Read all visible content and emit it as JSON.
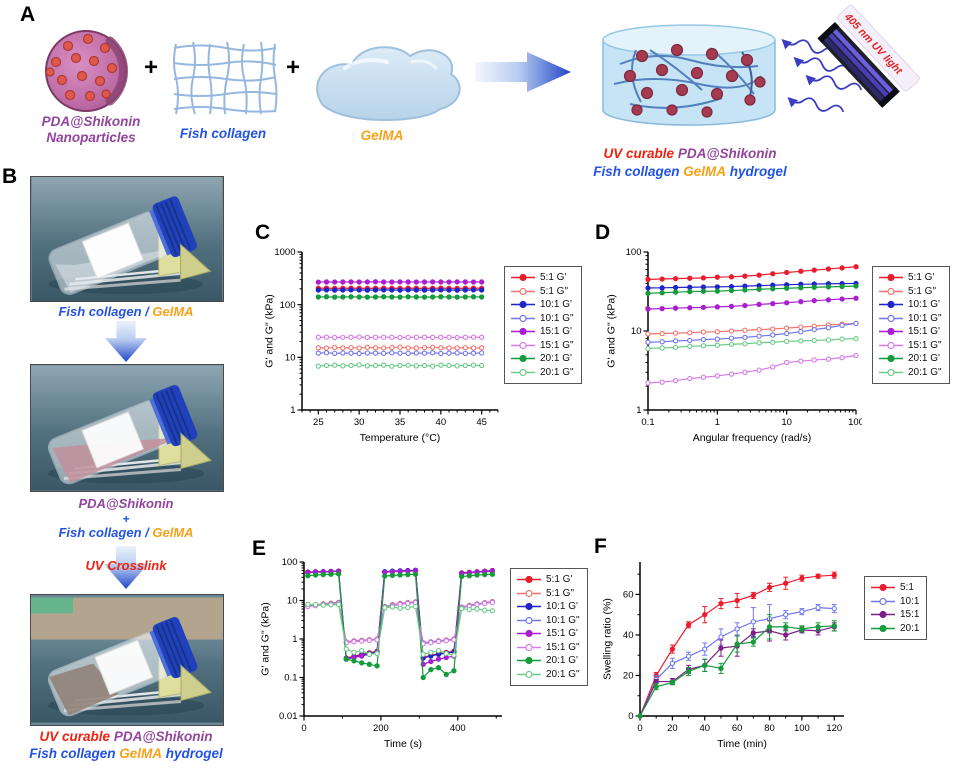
{
  "panels": {
    "a": "A",
    "b": "B",
    "c": "C",
    "d": "D",
    "e": "E",
    "f": "F"
  },
  "colors": {
    "label_purple": "#93449c",
    "label_blue": "#2353e3",
    "label_orange": "#f7a11a",
    "label_red": "#ee2211",
    "s5_g1": "#ec1c2d",
    "s5_g2": "#f2756d",
    "s10_g1": "#2125c8",
    "s10_g2": "#7178ee",
    "s15_g1": "#a91fd0",
    "s15_g2": "#d77ae8",
    "s20_g1": "#149b3b",
    "s20_g2": "#6bcb87",
    "f_15": "#7b2185"
  },
  "panel_a": {
    "nanoparticle_label_1": "PDA@Shikonin",
    "nanoparticle_label_2": "Nanoparticles",
    "plus": "+",
    "collagen_label": "Fish collagen",
    "gelma_label": "GelMA",
    "uv_lamp_label": "405 nm UV light",
    "caption": {
      "uv_curable": "UV curable",
      "pda": "PDA@Shikonin",
      "fish": "Fish collagen",
      "gelma": "GelMA",
      "hydrogel": "hydrogel"
    }
  },
  "panel_b": {
    "step1": {
      "fish": "Fish collagen",
      "sep": " / ",
      "gelma": "GelMA"
    },
    "step2": {
      "pda": "PDA@Shikonin",
      "plus": "+",
      "fish": "Fish collagen",
      "sep": " / ",
      "gelma": "GelMA"
    },
    "uv_crosslink": "UV Crosslink",
    "final": {
      "uv_curable": "UV curable",
      "pda": "PDA@Shikonin",
      "fish": "Fish collagen",
      "gelma": "GelMA",
      "hydrogel": "hydrogel"
    }
  },
  "chart_data": [
    {
      "panel": "c",
      "type": "line",
      "title": "",
      "xlabel": "Temperature (°C)",
      "ylabel": "G' and G\" (kPa)",
      "xscale": "linear",
      "xlim": [
        23,
        47
      ],
      "xticks": [
        25,
        30,
        35,
        40,
        45
      ],
      "xminor_step": 1,
      "yscale": "log",
      "ylim": [
        1,
        1000
      ],
      "yticks": [
        1,
        10,
        100,
        1000
      ],
      "x": [
        25,
        26,
        27,
        28,
        29,
        30,
        31,
        32,
        33,
        34,
        35,
        36,
        37,
        38,
        39,
        40,
        41,
        42,
        43,
        44,
        45
      ],
      "series": [
        {
          "name": "5:1 G'",
          "color": "#ec1c2d",
          "open": false,
          "y": [
            205,
            206,
            204,
            205,
            206,
            205,
            204,
            205,
            206,
            205,
            204,
            206,
            205,
            204,
            205,
            206,
            205,
            204,
            205,
            206,
            205
          ]
        },
        {
          "name": "5:1 G\"",
          "color": "#f2756d",
          "open": true,
          "y": [
            15.2,
            15.0,
            15.4,
            15.1,
            15.3,
            15.0,
            15.5,
            15.2,
            15.0,
            15.4,
            15.6,
            15.1,
            15.0,
            15.3,
            15.5,
            15.2,
            15.0,
            15.1,
            15.3,
            15.0,
            15.2
          ]
        },
        {
          "name": "10:1 G'",
          "color": "#2125c8",
          "open": false,
          "y": [
            190,
            191,
            189,
            190,
            191,
            190,
            189,
            190,
            191,
            190,
            189,
            191,
            190,
            189,
            190,
            191,
            190,
            189,
            190,
            191,
            190
          ]
        },
        {
          "name": "10:1 G\"",
          "color": "#7178ee",
          "open": true,
          "y": [
            12.0,
            12.2,
            11.9,
            12.1,
            12.0,
            11.8,
            12.1,
            12.0,
            11.9,
            12.2,
            12.0,
            11.9,
            12.1,
            12.0,
            12.2,
            11.8,
            12.0,
            12.1,
            11.9,
            12.0,
            12.1
          ]
        },
        {
          "name": "15:1 G'",
          "color": "#a91fd0",
          "open": false,
          "y": [
            268,
            270,
            269,
            270,
            271,
            269,
            270,
            272,
            270,
            269,
            271,
            270,
            269,
            270,
            271,
            270,
            269,
            271,
            270,
            269,
            270
          ]
        },
        {
          "name": "15:1 G\"",
          "color": "#d77ae8",
          "open": true,
          "y": [
            24,
            24.2,
            23.8,
            24.1,
            24,
            24.3,
            23.9,
            24,
            24.2,
            24,
            23.8,
            24.1,
            24,
            24.2,
            23.9,
            24,
            24.1,
            23.8,
            24,
            24.2,
            24
          ]
        },
        {
          "name": "20:1 G'",
          "color": "#149b3b",
          "open": false,
          "y": [
            140,
            141,
            139,
            140,
            141,
            140,
            139,
            140,
            141,
            140,
            139,
            141,
            140,
            139,
            140,
            141,
            140,
            139,
            140,
            141,
            140
          ]
        },
        {
          "name": "20:1 G\"",
          "color": "#6bcb87",
          "open": true,
          "y": [
            6.8,
            7,
            7.1,
            6.9,
            7,
            7.2,
            6.9,
            7,
            7.1,
            6.8,
            7,
            7.1,
            6.9,
            7,
            6.8,
            7.1,
            7,
            6.9,
            7,
            7.1,
            7
          ]
        }
      ]
    },
    {
      "panel": "d",
      "type": "line",
      "title": "",
      "xlabel": "Angular frequency (rad/s)",
      "ylabel": "G' and G\" (kPa)",
      "xscale": "log",
      "xlim": [
        0.1,
        100
      ],
      "xticks": [
        0.1,
        1,
        10,
        100
      ],
      "yscale": "log",
      "ylim": [
        1,
        100
      ],
      "yticks": [
        1,
        10,
        100
      ],
      "x": [
        0.1,
        0.16,
        0.25,
        0.4,
        0.63,
        1,
        1.6,
        2.5,
        4,
        6.3,
        10,
        16,
        25,
        40,
        63,
        100
      ],
      "series": [
        {
          "name": "5:1 G'",
          "color": "#ec1c2d",
          "open": false,
          "y": [
            45,
            45.5,
            46,
            46.5,
            47,
            48,
            48.5,
            49.5,
            51,
            53,
            55,
            57,
            59,
            61,
            63,
            65
          ]
        },
        {
          "name": "5:1 G\"",
          "color": "#f2756d",
          "open": true,
          "y": [
            9.2,
            9.3,
            9.4,
            9.5,
            9.7,
            9.8,
            10,
            10.2,
            10.4,
            10.6,
            10.9,
            11.2,
            11.5,
            11.9,
            12.2,
            12.5
          ]
        },
        {
          "name": "10:1 G'",
          "color": "#2125c8",
          "open": false,
          "y": [
            35,
            35.2,
            35.5,
            35.8,
            36,
            36.2,
            36.5,
            37,
            37.5,
            38,
            38.5,
            39,
            39.3,
            39.6,
            39.8,
            40
          ]
        },
        {
          "name": "10:1 G\"",
          "color": "#7178ee",
          "open": true,
          "y": [
            7.2,
            7.3,
            7.5,
            7.6,
            7.8,
            7.9,
            8.1,
            8.3,
            8.6,
            8.9,
            9.3,
            9.8,
            10.4,
            11,
            11.8,
            12.5
          ]
        },
        {
          "name": "15:1 G'",
          "color": "#a91fd0",
          "open": false,
          "y": [
            19,
            19.2,
            19.5,
            19.7,
            19.9,
            20.2,
            20.5,
            21,
            21.7,
            22.2,
            22.8,
            23.5,
            24.2,
            24.8,
            25.4,
            26
          ]
        },
        {
          "name": "15:1 G\"",
          "color": "#d77ae8",
          "open": true,
          "y": [
            2.2,
            2.25,
            2.35,
            2.5,
            2.6,
            2.7,
            2.85,
            3,
            3.2,
            3.5,
            4,
            4.15,
            4.3,
            4.4,
            4.6,
            4.9
          ]
        },
        {
          "name": "20:1 G'",
          "color": "#149b3b",
          "open": false,
          "y": [
            30,
            30.5,
            31,
            31.5,
            31.8,
            32,
            32.5,
            33,
            33.8,
            34.2,
            34.8,
            35.3,
            35.8,
            36.2,
            36.6,
            37
          ]
        },
        {
          "name": "20:1 G\"",
          "color": "#6bcb87",
          "open": true,
          "y": [
            6,
            6.1,
            6.2,
            6.4,
            6.5,
            6.6,
            6.8,
            6.9,
            7.1,
            7.2,
            7.4,
            7.5,
            7.6,
            7.7,
            7.9,
            8
          ]
        }
      ]
    },
    {
      "panel": "e",
      "type": "line",
      "title": "",
      "xlabel": "Time (s)",
      "ylabel": "G' and G\" (kPa)",
      "xscale": "linear",
      "xlim": [
        0,
        515
      ],
      "xticks": [
        0,
        200,
        400
      ],
      "xminor_step": 100,
      "yscale": "log",
      "ylim": [
        0.01,
        100
      ],
      "yticks": [
        0.01,
        0.1,
        1,
        10,
        100
      ],
      "x": [
        10,
        30,
        50,
        70,
        90,
        110,
        130,
        150,
        170,
        190,
        210,
        230,
        250,
        270,
        290,
        310,
        330,
        350,
        370,
        390,
        410,
        430,
        450,
        470,
        490
      ],
      "series": [
        {
          "name": "5:1 G'",
          "color": "#ec1c2d",
          "open": false,
          "y": [
            55,
            56,
            56,
            57,
            58,
            0.32,
            0.36,
            0.4,
            0.44,
            0.48,
            55,
            57,
            58,
            59,
            60,
            0.33,
            0.38,
            0.42,
            0.45,
            0.48,
            52,
            54,
            56,
            58,
            60
          ]
        },
        {
          "name": "5:1 G\"",
          "color": "#f2756d",
          "open": true,
          "y": [
            7.5,
            7.8,
            8.2,
            8.6,
            9.0,
            0.85,
            0.9,
            0.93,
            0.96,
            1.0,
            7.0,
            7.8,
            8.4,
            8.9,
            9.3,
            0.8,
            0.85,
            0.9,
            0.95,
            1.0,
            6.8,
            7.5,
            8.2,
            8.8,
            9.4
          ]
        },
        {
          "name": "10:1 G'",
          "color": "#2125c8",
          "open": false,
          "y": [
            54,
            55,
            56,
            57,
            58,
            0.31,
            0.34,
            0.38,
            0.42,
            0.46,
            56,
            58,
            59,
            60,
            61,
            0.32,
            0.36,
            0.4,
            0.43,
            0.46,
            51,
            53,
            55,
            57,
            59
          ]
        },
        {
          "name": "10:1 G\"",
          "color": "#7178ee",
          "open": true,
          "y": [
            7.2,
            7.5,
            7.9,
            8.3,
            8.7,
            0.82,
            0.87,
            0.9,
            0.94,
            0.97,
            6.8,
            7.5,
            8.1,
            8.6,
            9.0,
            0.78,
            0.83,
            0.88,
            0.92,
            0.97,
            6.6,
            7.3,
            8.0,
            8.6,
            9.1
          ]
        },
        {
          "name": "15:1 G'",
          "color": "#a91fd0",
          "open": false,
          "y": [
            53,
            54,
            55,
            56,
            57,
            0.3,
            0.33,
            0.36,
            0.4,
            0.44,
            54,
            56,
            57,
            58,
            59,
            0.22,
            0.26,
            0.3,
            0.33,
            0.36,
            50,
            52,
            54,
            56,
            58
          ]
        },
        {
          "name": "15:1 G\"",
          "color": "#d77ae8",
          "open": true,
          "y": [
            7.0,
            7.3,
            7.7,
            8.1,
            8.5,
            0.8,
            0.85,
            0.88,
            0.92,
            0.95,
            6.6,
            7.3,
            7.9,
            8.4,
            8.8,
            0.75,
            0.8,
            0.86,
            0.9,
            0.95,
            6.4,
            7.1,
            7.8,
            8.4,
            8.9
          ]
        },
        {
          "name": "20:1 G'",
          "color": "#149b3b",
          "open": false,
          "y": [
            44,
            46,
            47,
            48,
            49,
            0.3,
            0.27,
            0.24,
            0.22,
            0.2,
            43,
            45,
            46,
            47,
            48,
            0.1,
            0.16,
            0.18,
            0.12,
            0.15,
            42,
            44,
            46,
            47,
            48
          ]
        },
        {
          "name": "20:1 G\"",
          "color": "#6bcb87",
          "open": true,
          "y": [
            8.0,
            7.8,
            7.6,
            7.7,
            7.9,
            0.55,
            0.45,
            0.5,
            0.4,
            0.42,
            6.5,
            6.8,
            6.3,
            6.6,
            7.0,
            0.4,
            0.45,
            0.5,
            0.42,
            0.38,
            6.2,
            5.8,
            6.0,
            5.6,
            5.4
          ]
        }
      ]
    },
    {
      "panel": "f",
      "type": "line",
      "title": "",
      "xlabel": "Time (min)",
      "ylabel": "Swelling ratio (%)",
      "xscale": "linear",
      "xlim": [
        0,
        126
      ],
      "xticks": [
        0,
        20,
        40,
        60,
        80,
        100,
        120
      ],
      "xminor_step": 10,
      "yscale": "linear",
      "ylim": [
        0,
        76
      ],
      "yticks": [
        0,
        20,
        40,
        60
      ],
      "yminor_step": 10,
      "x": [
        0,
        10,
        20,
        30,
        40,
        50,
        60,
        70,
        80,
        90,
        100,
        110,
        120
      ],
      "series": [
        {
          "name": "5:1",
          "color": "#ec1c2d",
          "open": false,
          "y": [
            0,
            20,
            33,
            45,
            50,
            55.5,
            57,
            59.5,
            63.5,
            65.5,
            68,
            69,
            69.5
          ],
          "err": [
            0,
            1.5,
            2,
            1.5,
            4,
            2.5,
            3.5,
            1.5,
            2,
            3,
            1.5,
            1,
            1.5
          ]
        },
        {
          "name": "10:1",
          "color": "#7178ee",
          "open": true,
          "y": [
            0,
            18,
            26,
            29.5,
            33,
            39,
            43,
            46.5,
            48,
            50,
            51.5,
            53.5,
            53
          ],
          "err": [
            0,
            2,
            2.5,
            2,
            3,
            4,
            3,
            7,
            7,
            2,
            1.5,
            1.5,
            2
          ]
        },
        {
          "name": "15:1",
          "color": "#7b2185",
          "open": false,
          "y": [
            0,
            17,
            17,
            23,
            25,
            33.5,
            34.5,
            41,
            42,
            40,
            42.5,
            42,
            44
          ],
          "err": [
            0,
            1,
            1.5,
            2,
            3,
            4,
            5,
            2,
            5,
            2.5,
            1.5,
            2,
            2
          ]
        },
        {
          "name": "20:1",
          "color": "#149b3b",
          "open": false,
          "y": [
            0,
            14.5,
            16.5,
            22,
            25,
            23.5,
            35.5,
            36.5,
            44,
            44,
            43,
            44,
            44.5
          ],
          "err": [
            0,
            1.5,
            1,
            2,
            3,
            2.5,
            4,
            2,
            6,
            2,
            1.5,
            2,
            2.5
          ]
        }
      ]
    }
  ]
}
